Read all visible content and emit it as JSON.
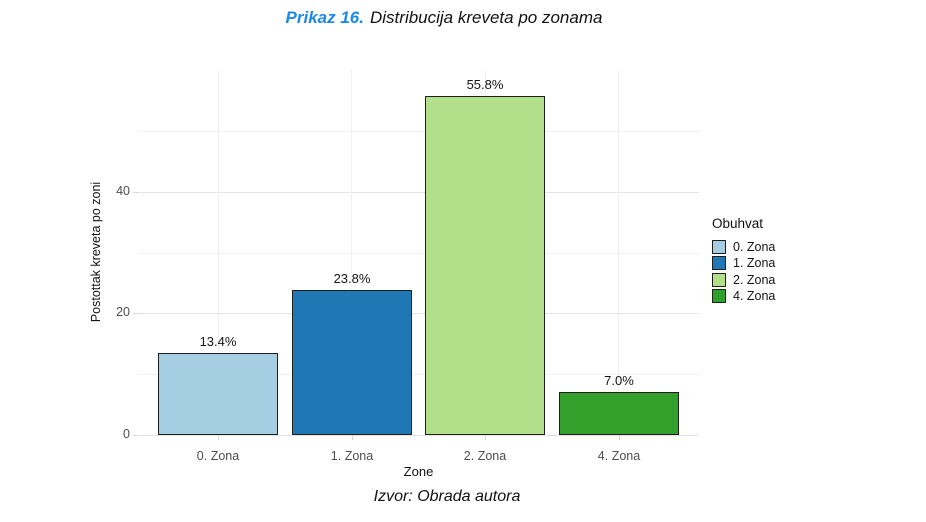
{
  "title": {
    "prefix": "Prikaz 16.",
    "rest": "Distribucija kreveta po zonama"
  },
  "caption": "Izvor: Obrada autora",
  "colors": {
    "caption_prefix_blue": "#1e88e5",
    "axis_text": "#4d4d4d",
    "grid_major": "#e4e4e4",
    "grid_minor": "#f1f1f1",
    "bar_border": "#1f1f1f"
  },
  "chart_data": {
    "type": "bar",
    "title": "Prikaz 16. Distribucija kreveta po zonama",
    "categories": [
      "0. Zona",
      "1. Zona",
      "2. Zona",
      "4. Zona"
    ],
    "values": [
      13.4,
      23.8,
      55.8,
      7.0
    ],
    "bar_labels": [
      "13.4%",
      "23.8%",
      "55.8%",
      "7.0%"
    ],
    "bar_colors": [
      "#a6cee3",
      "#1f78b4",
      "#b2df8a",
      "#33a02c"
    ],
    "xlabel": "Zone",
    "ylabel": "Postottak kreveta po zoni",
    "ylim": [
      0,
      60
    ],
    "yticks": [
      0,
      20,
      40
    ],
    "yticks_minor": [
      10,
      30,
      50
    ],
    "grid": true,
    "legend": {
      "title": "Obuhvat",
      "position": "right",
      "entries": [
        {
          "label": "0. Zona",
          "color": "#a6cee3"
        },
        {
          "label": "1. Zona",
          "color": "#1f78b4"
        },
        {
          "label": "2. Zona",
          "color": "#b2df8a"
        },
        {
          "label": "4. Zona",
          "color": "#33a02c"
        }
      ]
    }
  }
}
